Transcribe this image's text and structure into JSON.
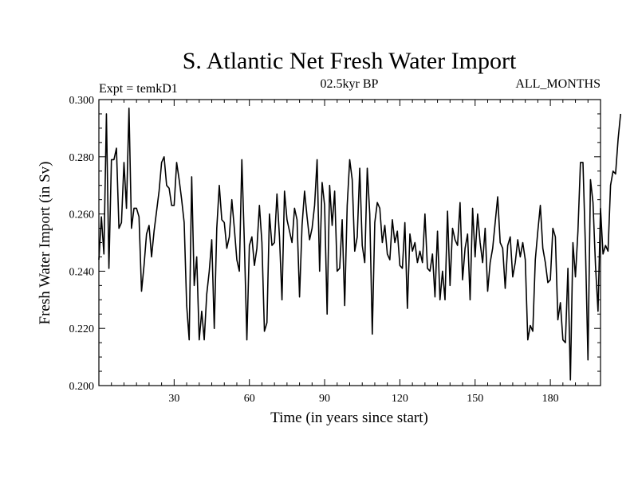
{
  "chart_data": {
    "type": "line",
    "title": "S. Atlantic Net Fresh Water Import",
    "subtitle_left": "Expt = temkD1",
    "subtitle_center": "02.5kyr BP",
    "subtitle_right": "ALL_MONTHS",
    "xlabel": "Time (in years since start)",
    "ylabel": "Fresh Water Import (in Sv)",
    "xlim": [
      0,
      200
    ],
    "ylim": [
      0.2,
      0.3
    ],
    "x_ticks": [
      30,
      60,
      90,
      120,
      150,
      180
    ],
    "x_tick_labels": [
      "30",
      "60",
      "90",
      "120",
      "150",
      "180"
    ],
    "y_ticks": [
      0.2,
      0.22,
      0.24,
      0.26,
      0.28,
      0.3
    ],
    "y_tick_labels": [
      "0.200",
      "0.220",
      "0.240",
      "0.260",
      "0.280",
      "0.300"
    ],
    "x_start": 0,
    "x_step": 1,
    "series": [
      {
        "name": "Fresh Water Import",
        "color": "#000000",
        "values": [
          0.244,
          0.259,
          0.246,
          0.295,
          0.241,
          0.279,
          0.279,
          0.283,
          0.255,
          0.257,
          0.278,
          0.262,
          0.297,
          0.255,
          0.262,
          0.262,
          0.259,
          0.233,
          0.242,
          0.253,
          0.256,
          0.245,
          0.254,
          0.261,
          0.268,
          0.278,
          0.28,
          0.27,
          0.269,
          0.263,
          0.263,
          0.278,
          0.272,
          0.265,
          0.257,
          0.228,
          0.216,
          0.273,
          0.235,
          0.245,
          0.216,
          0.226,
          0.216,
          0.232,
          0.24,
          0.251,
          0.22,
          0.255,
          0.27,
          0.258,
          0.257,
          0.248,
          0.252,
          0.265,
          0.255,
          0.244,
          0.24,
          0.279,
          0.25,
          0.216,
          0.249,
          0.252,
          0.242,
          0.248,
          0.263,
          0.25,
          0.219,
          0.222,
          0.26,
          0.249,
          0.25,
          0.267,
          0.252,
          0.23,
          0.268,
          0.258,
          0.254,
          0.25,
          0.262,
          0.258,
          0.231,
          0.256,
          0.268,
          0.259,
          0.251,
          0.255,
          0.263,
          0.279,
          0.24,
          0.271,
          0.263,
          0.225,
          0.27,
          0.256,
          0.268,
          0.24,
          0.241,
          0.258,
          0.228,
          0.263,
          0.279,
          0.272,
          0.247,
          0.252,
          0.276,
          0.249,
          0.243,
          0.276,
          0.26,
          0.218,
          0.257,
          0.264,
          0.262,
          0.25,
          0.256,
          0.246,
          0.244,
          0.258,
          0.25,
          0.254,
          0.242,
          0.241,
          0.257,
          0.227,
          0.253,
          0.247,
          0.25,
          0.243,
          0.247,
          0.243,
          0.26,
          0.241,
          0.24,
          0.246,
          0.231,
          0.254,
          0.23,
          0.24,
          0.23,
          0.261,
          0.235,
          0.255,
          0.251,
          0.249,
          0.264,
          0.237,
          0.248,
          0.253,
          0.23,
          0.262,
          0.245,
          0.26,
          0.25,
          0.243,
          0.255,
          0.233,
          0.243,
          0.248,
          0.257,
          0.266,
          0.25,
          0.248,
          0.234,
          0.249,
          0.252,
          0.238,
          0.243,
          0.251,
          0.245,
          0.25,
          0.244,
          0.216,
          0.221,
          0.219,
          0.244,
          0.254,
          0.263,
          0.248,
          0.243,
          0.236,
          0.237,
          0.255,
          0.252,
          0.223,
          0.229,
          0.216,
          0.215,
          0.241,
          0.202,
          0.25,
          0.238,
          0.254,
          0.278,
          0.278,
          0.248,
          0.209,
          0.272,
          0.264,
          0.242,
          0.226,
          0.262,
          0.246,
          0.249,
          0.247,
          0.27,
          0.275,
          0.274,
          0.286,
          0.295
        ]
      }
    ]
  }
}
